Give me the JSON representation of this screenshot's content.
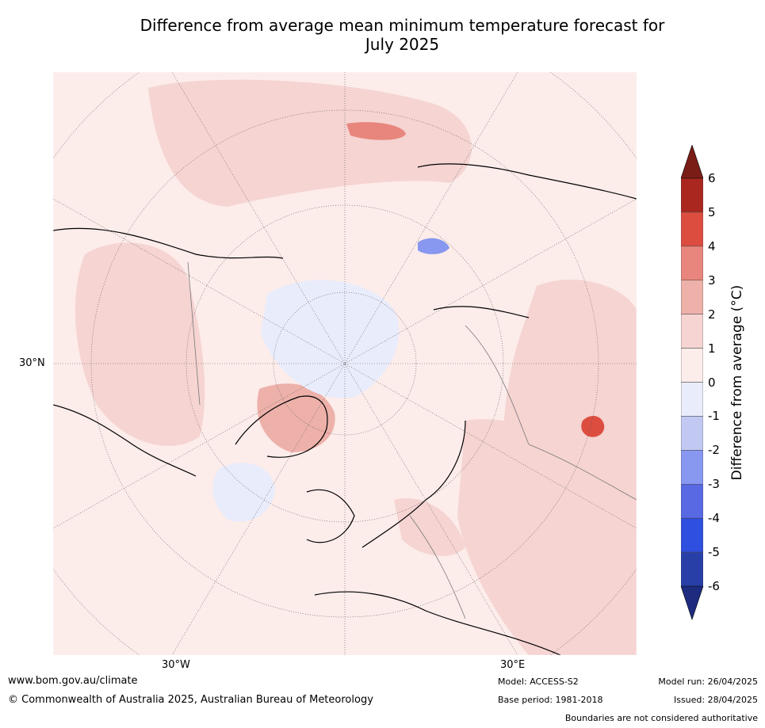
{
  "title_line1": "Difference from average mean minimum temperature forecast for",
  "title_line2": "July 2025",
  "axis_labels": {
    "lat": "30°N",
    "lon_west": "30°W",
    "lon_east": "30°E"
  },
  "colorbar": {
    "label": "Difference from average (°C)",
    "ticks": [
      "6",
      "5",
      "4",
      "3",
      "2",
      "1",
      "0",
      "-1",
      "-2",
      "-3",
      "-4",
      "-5",
      "-6"
    ],
    "colors_top_to_bottom": [
      "#a9271f",
      "#dc4d40",
      "#e8867d",
      "#edb1aa",
      "#f5d4d2",
      "#fcecea",
      "#e9ecfb",
      "#c1c9f3",
      "#8897ef",
      "#5869e3",
      "#2e4fe0",
      "#283fa8"
    ],
    "extend_high_color": "#7a1d17",
    "extend_low_color": "#1e2c80"
  },
  "footer": {
    "url": "www.bom.gov.au/climate",
    "copyright": "© Commonwealth of Australia 2025, Australian Bureau of Meteorology",
    "model": "Model: ACCESS-S2",
    "base_period": "Base period: 1981-2018",
    "model_run": "Model run: 26/04/2025",
    "issued": "Issued: 28/04/2025",
    "disclaimer": "Boundaries are not considered authoritative"
  }
}
